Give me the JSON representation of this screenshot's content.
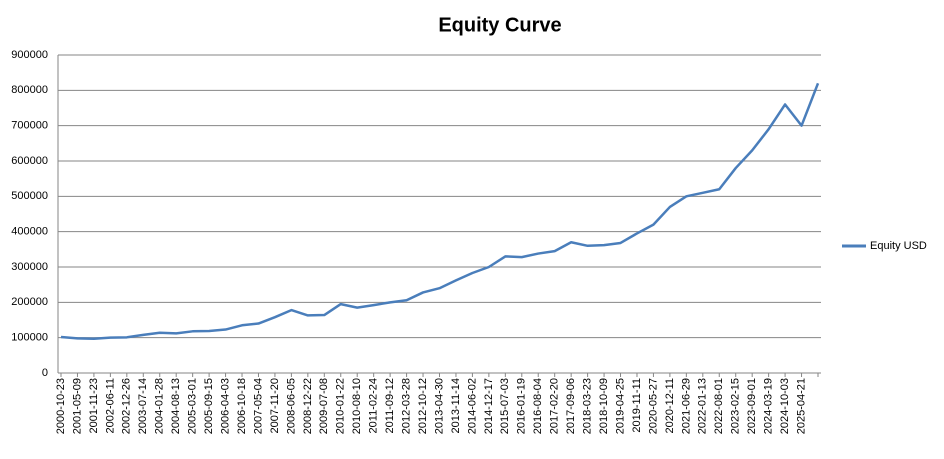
{
  "chart_data": {
    "type": "line",
    "title": "Equity Curve",
    "categories": [
      "2000-10-23",
      "2001-05-09",
      "2001-11-23",
      "2002-06-11",
      "2002-12-26",
      "2003-07-14",
      "2004-01-28",
      "2004-08-13",
      "2005-03-01",
      "2005-09-15",
      "2006-04-03",
      "2006-10-18",
      "2007-05-04",
      "2007-11-20",
      "2008-06-05",
      "2008-12-22",
      "2009-07-08",
      "2010-01-22",
      "2010-08-10",
      "2011-02-24",
      "2011-09-12",
      "2012-03-28",
      "2012-10-12",
      "2013-04-30",
      "2013-11-14",
      "2014-06-02",
      "2014-12-17",
      "2015-07-03",
      "2016-01-19",
      "2016-08-04",
      "2017-02-20",
      "2017-09-06",
      "2018-03-23",
      "2018-10-09",
      "2019-04-25",
      "2019-11-11",
      "2020-05-27",
      "2020-12-11",
      "2021-06-29",
      "2022-01-13",
      "2022-08-01",
      "2023-02-15",
      "2023-09-01",
      "2024-03-19",
      "2024-10-03",
      "2025-04-21",
      null
    ],
    "series": [
      {
        "name": "Equity USD",
        "color": "#4a7ebb",
        "values": [
          102000,
          98000,
          97000,
          100000,
          101000,
          108000,
          114000,
          112000,
          118000,
          119000,
          123000,
          135000,
          140000,
          158000,
          178000,
          163000,
          164000,
          195000,
          185000,
          192000,
          200000,
          206000,
          228000,
          240000,
          262000,
          283000,
          300000,
          330000,
          328000,
          338000,
          345000,
          370000,
          360000,
          362000,
          368000,
          395000,
          420000,
          470000,
          500000,
          510000,
          520000,
          580000,
          630000,
          690000,
          760000,
          700000,
          820000
        ]
      }
    ],
    "ylim": [
      0,
      900000
    ],
    "yticks": [
      0,
      100000,
      200000,
      300000,
      400000,
      500000,
      600000,
      700000,
      800000,
      900000
    ],
    "grid": true,
    "legend": "right"
  }
}
